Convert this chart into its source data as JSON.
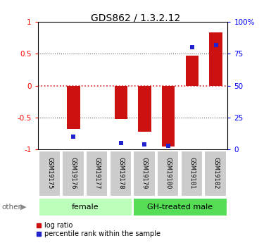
{
  "title": "GDS862 / 1.3.2.12",
  "samples": [
    "GSM19175",
    "GSM19176",
    "GSM19177",
    "GSM19178",
    "GSM19179",
    "GSM19180",
    "GSM19181",
    "GSM19182"
  ],
  "log_ratio": [
    0.0,
    -0.68,
    0.0,
    -0.52,
    -0.72,
    -0.95,
    0.47,
    0.83
  ],
  "percentile_rank": [
    null,
    10,
    null,
    5,
    4,
    3,
    80,
    82
  ],
  "groups": [
    {
      "label": "female",
      "start": 0,
      "end": 4,
      "color": "#bbffbb"
    },
    {
      "label": "GH-treated male",
      "start": 4,
      "end": 8,
      "color": "#55dd55"
    }
  ],
  "ylim_left": [
    -1,
    1
  ],
  "ylim_right": [
    0,
    100
  ],
  "yticks_left": [
    -1,
    -0.5,
    0,
    0.5,
    1
  ],
  "yticks_right": [
    0,
    25,
    50,
    75,
    100
  ],
  "ytick_labels_left": [
    "-1",
    "-0.5",
    "0",
    "0.5",
    "1"
  ],
  "ytick_labels_right": [
    "0",
    "25",
    "50",
    "75",
    "100%"
  ],
  "bar_color": "#cc1111",
  "dot_color": "#2222cc",
  "hline_color": "#dd2222",
  "grid_color": "#555555",
  "plot_bg_color": "#ffffff",
  "sample_box_color": "#cccccc",
  "legend_bar_label": "log ratio",
  "legend_dot_label": "percentile rank within the sample",
  "other_label": "other",
  "bar_width": 0.55
}
